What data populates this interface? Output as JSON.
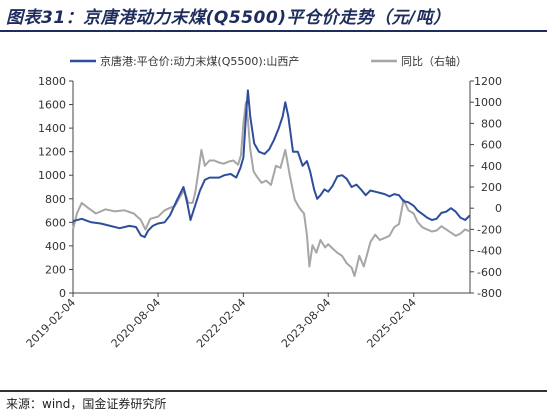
{
  "header": {
    "title": "图表31：京唐港动力末煤(Q5500)平仓价走势（元/吨）"
  },
  "footer": {
    "source": "来源：wind，国金证券研究所"
  },
  "colors": {
    "price": "#2e4e9b",
    "yoy": "#a6a6a6",
    "title": "#1f2d5c"
  },
  "chart_data": {
    "type": "line",
    "title": "",
    "legend_position": "top",
    "grid": false,
    "x_range": [
      "2019-02-04",
      "2026-02-01"
    ],
    "x_ticks": [
      "2019-02-04",
      "2020-08-04",
      "2022-02-04",
      "2023-08-04",
      "2025-02-04"
    ],
    "y_left": {
      "range": [
        0,
        1800
      ],
      "ticks": [
        "0",
        "200",
        "400",
        "600",
        "800",
        "1000",
        "1200",
        "1400",
        "1600",
        "1800"
      ]
    },
    "y_right": {
      "range": [
        -800,
        1200
      ],
      "ticks": [
        "-800",
        "-600",
        "-400",
        "-200",
        "0",
        "200",
        "400",
        "600",
        "800",
        "1000",
        "1200"
      ]
    },
    "series": [
      {
        "name": "京唐港:平仓价:动力末煤(Q5500):山西产",
        "axis": "left",
        "points": [
          [
            "2019-02-04",
            610
          ],
          [
            "2019-04-01",
            630
          ],
          [
            "2019-06-01",
            600
          ],
          [
            "2019-08-01",
            590
          ],
          [
            "2019-10-01",
            570
          ],
          [
            "2019-12-01",
            550
          ],
          [
            "2020-02-01",
            570
          ],
          [
            "2020-03-15",
            560
          ],
          [
            "2020-04-15",
            490
          ],
          [
            "2020-05-10",
            475
          ],
          [
            "2020-06-01",
            530
          ],
          [
            "2020-07-01",
            570
          ],
          [
            "2020-08-04",
            590
          ],
          [
            "2020-09-15",
            600
          ],
          [
            "2020-10-20",
            660
          ],
          [
            "2020-12-01",
            780
          ],
          [
            "2021-01-15",
            900
          ],
          [
            "2021-02-10",
            750
          ],
          [
            "2021-03-01",
            620
          ],
          [
            "2021-03-20",
            700
          ],
          [
            "2021-05-01",
            870
          ],
          [
            "2021-06-01",
            960
          ],
          [
            "2021-07-01",
            980
          ],
          [
            "2021-08-01",
            980
          ],
          [
            "2021-09-01",
            980
          ],
          [
            "2021-10-05",
            1000
          ],
          [
            "2021-11-15",
            1010
          ],
          [
            "2021-12-20",
            980
          ],
          [
            "2022-01-15",
            1060
          ],
          [
            "2022-02-04",
            1150
          ],
          [
            "2022-02-20",
            1500
          ],
          [
            "2022-03-05",
            1720
          ],
          [
            "2022-03-20",
            1500
          ],
          [
            "2022-04-15",
            1270
          ],
          [
            "2022-05-15",
            1200
          ],
          [
            "2022-06-20",
            1180
          ],
          [
            "2022-07-20",
            1220
          ],
          [
            "2022-08-20",
            1300
          ],
          [
            "2022-09-20",
            1400
          ],
          [
            "2022-10-15",
            1500
          ],
          [
            "2022-11-01",
            1620
          ],
          [
            "2022-11-20",
            1500
          ],
          [
            "2022-12-20",
            1200
          ],
          [
            "2023-01-20",
            1200
          ],
          [
            "2023-02-20",
            1080
          ],
          [
            "2023-03-20",
            1120
          ],
          [
            "2023-04-10",
            1030
          ],
          [
            "2023-05-05",
            880
          ],
          [
            "2023-05-25",
            800
          ],
          [
            "2023-06-15",
            830
          ],
          [
            "2023-07-10",
            880
          ],
          [
            "2023-08-04",
            860
          ],
          [
            "2023-09-01",
            910
          ],
          [
            "2023-10-01",
            990
          ],
          [
            "2023-11-01",
            1000
          ],
          [
            "2023-12-01",
            970
          ],
          [
            "2024-01-01",
            900
          ],
          [
            "2024-02-01",
            920
          ],
          [
            "2024-03-01",
            880
          ],
          [
            "2024-04-01",
            830
          ],
          [
            "2024-05-01",
            870
          ],
          [
            "2024-06-01",
            860
          ],
          [
            "2024-07-01",
            850
          ],
          [
            "2024-08-01",
            840
          ],
          [
            "2024-09-01",
            820
          ],
          [
            "2024-10-01",
            840
          ],
          [
            "2024-11-01",
            830
          ],
          [
            "2024-12-01",
            780
          ],
          [
            "2025-01-01",
            770
          ],
          [
            "2025-02-04",
            740
          ],
          [
            "2025-03-01",
            700
          ],
          [
            "2025-04-01",
            670
          ],
          [
            "2025-05-01",
            640
          ],
          [
            "2025-06-01",
            620
          ],
          [
            "2025-07-01",
            630
          ],
          [
            "2025-08-01",
            680
          ],
          [
            "2025-09-01",
            690
          ],
          [
            "2025-10-01",
            720
          ],
          [
            "2025-11-01",
            690
          ],
          [
            "2025-12-01",
            640
          ],
          [
            "2026-01-01",
            620
          ],
          [
            "2026-02-01",
            660
          ]
        ]
      },
      {
        "name": "同比（右轴）",
        "axis": "right",
        "points": [
          [
            "2019-02-04",
            -200
          ],
          [
            "2019-03-01",
            -50
          ],
          [
            "2019-04-01",
            50
          ],
          [
            "2019-05-15",
            0
          ],
          [
            "2019-07-01",
            -50
          ],
          [
            "2019-09-01",
            -10
          ],
          [
            "2019-11-01",
            -30
          ],
          [
            "2020-01-01",
            -20
          ],
          [
            "2020-03-01",
            -50
          ],
          [
            "2020-04-15",
            -110
          ],
          [
            "2020-05-15",
            -200
          ],
          [
            "2020-06-15",
            -100
          ],
          [
            "2020-08-04",
            -80
          ],
          [
            "2020-09-15",
            -20
          ],
          [
            "2020-10-15",
            0
          ],
          [
            "2020-11-20",
            20
          ],
          [
            "2020-12-20",
            100
          ],
          [
            "2021-01-20",
            170
          ],
          [
            "2021-02-15",
            50
          ],
          [
            "2021-03-15",
            50
          ],
          [
            "2021-04-01",
            150
          ],
          [
            "2021-04-20",
            340
          ],
          [
            "2021-05-10",
            550
          ],
          [
            "2021-06-01",
            400
          ],
          [
            "2021-07-01",
            450
          ],
          [
            "2021-08-01",
            450
          ],
          [
            "2021-09-01",
            430
          ],
          [
            "2021-10-01",
            420
          ],
          [
            "2021-11-01",
            440
          ],
          [
            "2021-12-01",
            450
          ],
          [
            "2022-01-01",
            410
          ],
          [
            "2022-01-20",
            500
          ],
          [
            "2022-02-04",
            800
          ],
          [
            "2022-02-20",
            1000
          ],
          [
            "2022-03-05",
            830
          ],
          [
            "2022-03-20",
            560
          ],
          [
            "2022-04-10",
            350
          ],
          [
            "2022-05-01",
            300
          ],
          [
            "2022-06-01",
            240
          ],
          [
            "2022-07-01",
            260
          ],
          [
            "2022-08-01",
            220
          ],
          [
            "2022-09-01",
            400
          ],
          [
            "2022-10-01",
            380
          ],
          [
            "2022-11-01",
            550
          ],
          [
            "2022-12-01",
            300
          ],
          [
            "2023-01-01",
            80
          ],
          [
            "2023-02-01",
            0
          ],
          [
            "2023-03-01",
            -50
          ],
          [
            "2023-03-20",
            -250
          ],
          [
            "2023-04-05",
            -550
          ],
          [
            "2023-04-25",
            -350
          ],
          [
            "2023-05-20",
            -420
          ],
          [
            "2023-06-15",
            -300
          ],
          [
            "2023-07-15",
            -370
          ],
          [
            "2023-08-04",
            -340
          ],
          [
            "2023-09-01",
            -380
          ],
          [
            "2023-10-01",
            -420
          ],
          [
            "2023-11-01",
            -450
          ],
          [
            "2023-12-01",
            -520
          ],
          [
            "2024-01-01",
            -560
          ],
          [
            "2024-01-20",
            -640
          ],
          [
            "2024-02-20",
            -450
          ],
          [
            "2024-03-20",
            -550
          ],
          [
            "2024-05-01",
            -320
          ],
          [
            "2024-06-01",
            -250
          ],
          [
            "2024-07-01",
            -300
          ],
          [
            "2024-08-01",
            -280
          ],
          [
            "2024-09-01",
            -260
          ],
          [
            "2024-10-01",
            -180
          ],
          [
            "2024-11-01",
            -150
          ],
          [
            "2024-12-01",
            80
          ],
          [
            "2025-01-01",
            -20
          ],
          [
            "2025-02-04",
            -50
          ],
          [
            "2025-03-01",
            -130
          ],
          [
            "2025-04-01",
            -180
          ],
          [
            "2025-05-01",
            -200
          ],
          [
            "2025-06-01",
            -220
          ],
          [
            "2025-07-01",
            -210
          ],
          [
            "2025-08-01",
            -170
          ],
          [
            "2025-09-01",
            -200
          ],
          [
            "2025-10-01",
            -230
          ],
          [
            "2025-11-01",
            -260
          ],
          [
            "2025-12-01",
            -240
          ],
          [
            "2026-01-01",
            -200
          ],
          [
            "2026-02-01",
            -220
          ]
        ]
      }
    ]
  }
}
